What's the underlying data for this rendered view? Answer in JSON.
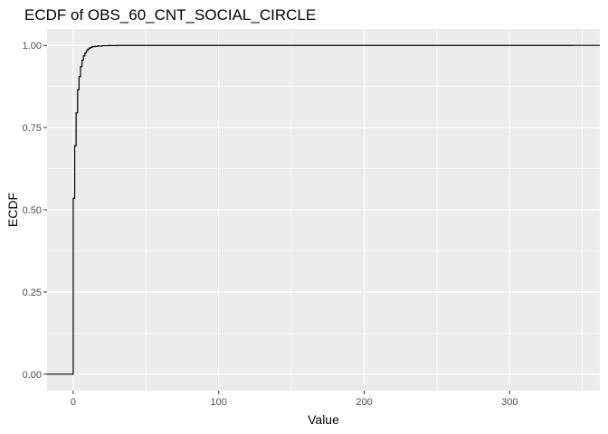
{
  "chart_data": {
    "type": "line",
    "step": true,
    "title": "ECDF of OBS_60_CNT_SOCIAL_CIRCLE",
    "xlabel": "Value",
    "ylabel": "ECDF",
    "xlim": [
      -18,
      362
    ],
    "ylim": [
      -0.05,
      1.05
    ],
    "x_ticks": [
      0,
      100,
      200,
      300
    ],
    "x_tick_labels": [
      "0",
      "100",
      "200",
      "300"
    ],
    "x_minor": [
      50,
      150,
      250,
      350
    ],
    "y_ticks": [
      0,
      0.25,
      0.5,
      0.75,
      1
    ],
    "y_tick_labels": [
      "0.00",
      "0.25",
      "0.50",
      "0.75",
      "1.00"
    ],
    "y_minor": [
      0.125,
      0.375,
      0.625,
      0.875
    ],
    "grid": true,
    "legend": "none",
    "series": [
      {
        "x": [
          0,
          1,
          2,
          3,
          4,
          5,
          6,
          7,
          8,
          9,
          10,
          11,
          12,
          13,
          15,
          17,
          20,
          24,
          30,
          47,
          344
        ],
        "y": [
          0.535,
          0.695,
          0.795,
          0.865,
          0.905,
          0.935,
          0.955,
          0.968,
          0.977,
          0.984,
          0.989,
          0.992,
          0.994,
          0.996,
          0.997,
          0.998,
          0.999,
          0.9995,
          0.9998,
          0.9999,
          1.0
        ]
      }
    ]
  }
}
